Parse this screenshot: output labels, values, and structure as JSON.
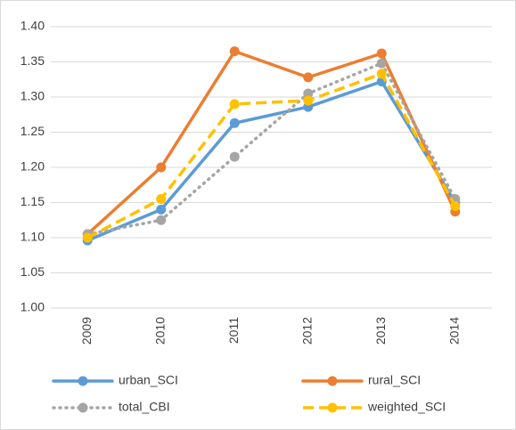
{
  "chart_data": {
    "type": "line",
    "categories": [
      "2009",
      "2010",
      "2011",
      "2012",
      "2013",
      "2014"
    ],
    "series": [
      {
        "name": "urban_SCI",
        "color": "#5b9bd5",
        "dash": "solid",
        "values": [
          1.096,
          1.14,
          1.263,
          1.286,
          1.322,
          1.15
        ]
      },
      {
        "name": "rural_SCI",
        "color": "#ed7d31",
        "dash": "solid",
        "values": [
          1.105,
          1.2,
          1.365,
          1.328,
          1.362,
          1.137
        ]
      },
      {
        "name": "total_CBI",
        "color": "#a5a5a5",
        "dash": "dotted",
        "values": [
          1.105,
          1.125,
          1.215,
          1.305,
          1.348,
          1.155
        ]
      },
      {
        "name": "weighted_SCI",
        "color": "#ffc000",
        "dash": "dashed",
        "values": [
          1.1,
          1.155,
          1.29,
          1.295,
          1.333,
          1.145
        ]
      }
    ],
    "ylim": [
      1.0,
      1.4
    ],
    "yticks": [
      {
        "value": 1.0,
        "label": "1.00"
      },
      {
        "value": 1.05,
        "label": "1.05"
      },
      {
        "value": 1.1,
        "label": "1.10"
      },
      {
        "value": 1.15,
        "label": "1.15"
      },
      {
        "value": 1.2,
        "label": "1.20"
      },
      {
        "value": 1.25,
        "label": "1.25"
      },
      {
        "value": 1.3,
        "label": "1.30"
      },
      {
        "value": 1.35,
        "label": "1.35"
      },
      {
        "value": 1.4,
        "label": "1.40"
      }
    ],
    "grid": true,
    "legend": "bottom"
  }
}
